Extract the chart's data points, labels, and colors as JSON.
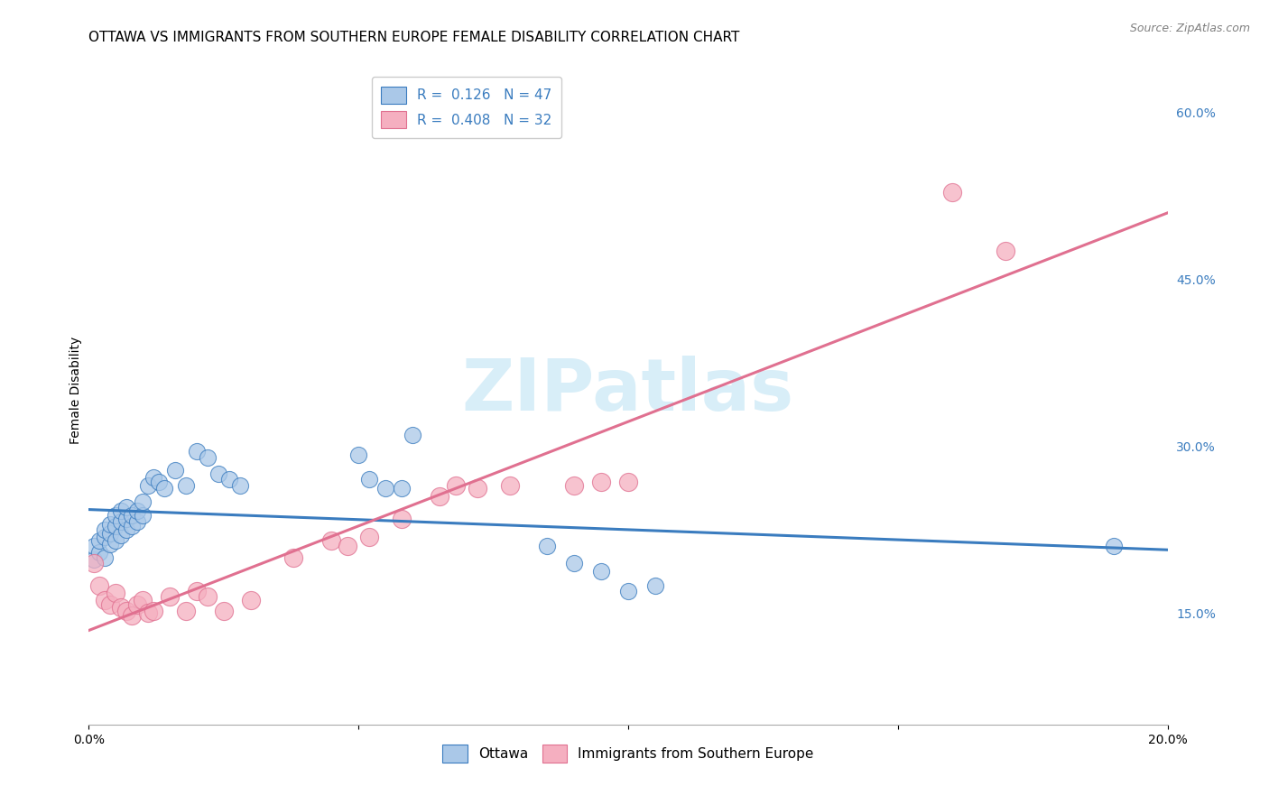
{
  "title": "OTTAWA VS IMMIGRANTS FROM SOUTHERN EUROPE FEMALE DISABILITY CORRELATION CHART",
  "source": "Source: ZipAtlas.com",
  "ylabel": "Female Disability",
  "xlim": [
    0.0,
    0.2
  ],
  "ylim": [
    0.05,
    0.65
  ],
  "xticks": [
    0.0,
    0.05,
    0.1,
    0.15,
    0.2
  ],
  "xtick_labels": [
    "0.0%",
    "",
    "",
    "",
    "20.0%"
  ],
  "ytick_vals_right": [
    0.15,
    0.3,
    0.45,
    0.6
  ],
  "ytick_labels_right": [
    "15.0%",
    "30.0%",
    "45.0%",
    "60.0%"
  ],
  "legend_top_labels": [
    "R =  0.126   N = 47",
    "R =  0.408   N = 32"
  ],
  "legend_bottom_labels": [
    "Ottawa",
    "Immigrants from Southern Europe"
  ],
  "blue_scatter_x": [
    0.001,
    0.001,
    0.002,
    0.002,
    0.003,
    0.003,
    0.003,
    0.004,
    0.004,
    0.004,
    0.005,
    0.005,
    0.005,
    0.006,
    0.006,
    0.006,
    0.007,
    0.007,
    0.007,
    0.008,
    0.008,
    0.009,
    0.009,
    0.01,
    0.01,
    0.011,
    0.012,
    0.013,
    0.014,
    0.016,
    0.018,
    0.02,
    0.022,
    0.024,
    0.026,
    0.028,
    0.05,
    0.052,
    0.055,
    0.058,
    0.06,
    0.085,
    0.09,
    0.095,
    0.1,
    0.105,
    0.19
  ],
  "blue_scatter_y": [
    0.198,
    0.21,
    0.205,
    0.215,
    0.2,
    0.218,
    0.225,
    0.212,
    0.222,
    0.23,
    0.215,
    0.228,
    0.238,
    0.22,
    0.232,
    0.242,
    0.225,
    0.235,
    0.245,
    0.228,
    0.238,
    0.232,
    0.242,
    0.238,
    0.25,
    0.265,
    0.272,
    0.268,
    0.262,
    0.278,
    0.265,
    0.295,
    0.29,
    0.275,
    0.27,
    0.265,
    0.292,
    0.27,
    0.262,
    0.262,
    0.31,
    0.21,
    0.195,
    0.188,
    0.17,
    0.175,
    0.21
  ],
  "pink_scatter_x": [
    0.001,
    0.002,
    0.003,
    0.004,
    0.005,
    0.006,
    0.007,
    0.008,
    0.009,
    0.01,
    0.011,
    0.012,
    0.015,
    0.018,
    0.02,
    0.022,
    0.025,
    0.03,
    0.038,
    0.045,
    0.048,
    0.052,
    0.058,
    0.065,
    0.068,
    0.072,
    0.078,
    0.09,
    0.095,
    0.1,
    0.16,
    0.17
  ],
  "pink_scatter_y": [
    0.195,
    0.175,
    0.162,
    0.158,
    0.168,
    0.155,
    0.152,
    0.148,
    0.158,
    0.162,
    0.15,
    0.152,
    0.165,
    0.152,
    0.17,
    0.165,
    0.152,
    0.162,
    0.2,
    0.215,
    0.21,
    0.218,
    0.235,
    0.255,
    0.265,
    0.262,
    0.265,
    0.265,
    0.268,
    0.268,
    0.528,
    0.475
  ],
  "blue_line_color": "#3a7cbf",
  "pink_line_color": "#e07090",
  "scatter_blue_color": "#aac8e8",
  "scatter_pink_color": "#f5afc0",
  "background_color": "#ffffff",
  "grid_color": "#cccccc",
  "watermark_text": "ZIPatlas",
  "watermark_color": "#d8eef8",
  "title_fontsize": 11,
  "tick_fontsize": 10,
  "ylabel_fontsize": 10,
  "legend_fontsize": 11
}
